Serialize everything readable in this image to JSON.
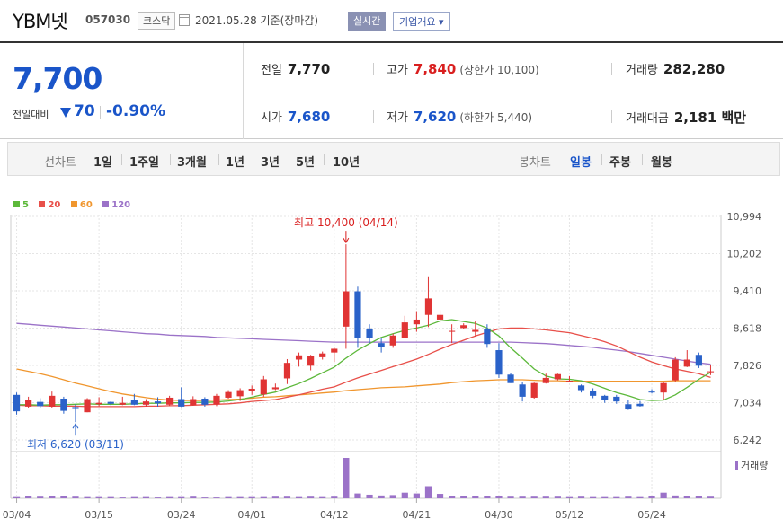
{
  "header": {
    "stock_name": "YBM넷",
    "stock_code": "057030",
    "market": "코스닥",
    "date_text": "2021.05.28 기준(장마감)",
    "realtime_button": "실시간",
    "company_button": "기업개요 ▾"
  },
  "summary": {
    "current_price": "7,700",
    "change_label": "전일대비",
    "change_value": "70",
    "change_rate": "-0.90%",
    "prev_close_label": "전일",
    "prev_close": "7,770",
    "high_label": "고가",
    "high": "7,840",
    "upper_limit": "(상한가 10,100)",
    "volume_label": "거래량",
    "volume": "282,280",
    "open_label": "시가",
    "open": "7,680",
    "low_label": "저가",
    "low": "7,620",
    "lower_limit": "(하한가 5,440)",
    "amount_label": "거래대금",
    "amount": "2,181 백만"
  },
  "periods": {
    "line_label": "선차트",
    "line_items": [
      "1일",
      "1주일",
      "3개월",
      "1년",
      "3년",
      "5년",
      "10년"
    ],
    "candle_label": "봉차트",
    "candle_items": [
      "일봉",
      "주봉",
      "월봉"
    ],
    "candle_selected": "일봉"
  },
  "colors": {
    "up": "#e03434",
    "down": "#2a62c9",
    "ma5": "#5cb83a",
    "ma20": "#e8504a",
    "ma60": "#f0962e",
    "ma120": "#9b72c8",
    "volume": "#9b72c8"
  },
  "legend": [
    "5",
    "20",
    "60",
    "120"
  ],
  "volume_label": "거래량",
  "chart_data": {
    "type": "candlestick",
    "y_ticks": [
      "10,994",
      "10,202",
      "9,410",
      "8,618",
      "7,826",
      "7,034",
      "6,242"
    ],
    "ylim": [
      6242,
      10994
    ],
    "x_ticks": [
      {
        "label": "03/04",
        "index": 0
      },
      {
        "label": "03/15",
        "index": 7
      },
      {
        "label": "03/24",
        "index": 14
      },
      {
        "label": "04/01",
        "index": 20
      },
      {
        "label": "04/12",
        "index": 27
      },
      {
        "label": "04/21",
        "index": 34
      },
      {
        "label": "04/30",
        "index": 41
      },
      {
        "label": "05/12",
        "index": 47
      },
      {
        "label": "05/24",
        "index": 54
      }
    ],
    "annotations": {
      "high": {
        "text": "최고 10,400 (04/14)",
        "index": 28,
        "value": 10400
      },
      "low": {
        "text": "최저 6,620 (03/11)",
        "index": 5,
        "value": 6620
      }
    },
    "candles": [
      [
        7200,
        7250,
        6780,
        6850
      ],
      [
        6950,
        7160,
        6920,
        7100
      ],
      [
        7050,
        7130,
        6920,
        6960
      ],
      [
        6950,
        7270,
        6930,
        7180
      ],
      [
        7120,
        7160,
        6800,
        6860
      ],
      [
        6940,
        7000,
        6620,
        6900
      ],
      [
        6830,
        7130,
        6830,
        7110
      ],
      [
        7000,
        7150,
        6960,
        7030
      ],
      [
        7050,
        7060,
        6980,
        7010
      ],
      [
        6990,
        7160,
        6980,
        7030
      ],
      [
        7100,
        7220,
        6980,
        6990
      ],
      [
        6990,
        7110,
        6950,
        7060
      ],
      [
        7060,
        7150,
        6950,
        7020
      ],
      [
        6990,
        7180,
        6960,
        7140
      ],
      [
        7110,
        7360,
        6940,
        6950
      ],
      [
        6980,
        7170,
        6970,
        7110
      ],
      [
        7120,
        7150,
        6950,
        6990
      ],
      [
        7000,
        7220,
        6960,
        7180
      ],
      [
        7140,
        7300,
        7120,
        7260
      ],
      [
        7170,
        7340,
        7070,
        7300
      ],
      [
        7280,
        7400,
        7200,
        7330
      ],
      [
        7210,
        7600,
        7160,
        7530
      ],
      [
        7320,
        7440,
        7300,
        7360
      ],
      [
        7550,
        7960,
        7430,
        7880
      ],
      [
        7950,
        8100,
        7800,
        8040
      ],
      [
        7820,
        8050,
        7720,
        8020
      ],
      [
        8000,
        8120,
        7950,
        8080
      ],
      [
        8100,
        8200,
        7900,
        8180
      ],
      [
        8650,
        10400,
        8180,
        9400
      ],
      [
        9400,
        9500,
        8200,
        8400
      ],
      [
        8610,
        8700,
        8300,
        8400
      ],
      [
        8300,
        8400,
        8100,
        8210
      ],
      [
        8250,
        8500,
        8200,
        8460
      ],
      [
        8400,
        8880,
        8400,
        8740
      ],
      [
        8700,
        8980,
        8540,
        8800
      ],
      [
        8900,
        9720,
        8640,
        9250
      ],
      [
        8800,
        9000,
        8730,
        8900
      ],
      [
        8540,
        8700,
        8300,
        8560
      ],
      [
        8620,
        8720,
        8600,
        8680
      ],
      [
        8540,
        8780,
        8440,
        8580
      ],
      [
        8600,
        8700,
        8200,
        8280
      ],
      [
        8150,
        8300,
        7560,
        7630
      ],
      [
        7630,
        7660,
        7450,
        7450
      ],
      [
        7420,
        7480,
        7060,
        7160
      ],
      [
        7140,
        7460,
        7120,
        7450
      ],
      [
        7450,
        7650,
        7440,
        7560
      ],
      [
        7530,
        7650,
        7510,
        7640
      ],
      [
        7500,
        7600,
        7470,
        7500
      ],
      [
        7400,
        7420,
        7250,
        7300
      ],
      [
        7290,
        7340,
        7130,
        7180
      ],
      [
        7180,
        7200,
        7030,
        7100
      ],
      [
        7160,
        7200,
        7010,
        7060
      ],
      [
        7000,
        7100,
        6880,
        6890
      ],
      [
        7010,
        7070,
        6950,
        6960
      ],
      [
        7270,
        7320,
        7230,
        7250
      ],
      [
        7250,
        7480,
        7100,
        7450
      ],
      [
        7510,
        8000,
        7480,
        7950
      ],
      [
        7800,
        8150,
        7790,
        7950
      ],
      [
        8050,
        8100,
        7770,
        7820
      ],
      [
        7680,
        7840,
        7620,
        7700
      ]
    ],
    "ma5": [
      6990,
      6990,
      6980,
      6990,
      6990,
      7000,
      7010,
      7000,
      7000,
      7000,
      7010,
      7020,
      7020,
      7030,
      7030,
      7040,
      7040,
      7050,
      7070,
      7100,
      7150,
      7210,
      7260,
      7350,
      7440,
      7550,
      7670,
      7790,
      7980,
      8150,
      8290,
      8420,
      8500,
      8570,
      8620,
      8680,
      8770,
      8800,
      8760,
      8720,
      8620,
      8450,
      8200,
      7980,
      7750,
      7600,
      7540,
      7530,
      7500,
      7430,
      7340,
      7250,
      7180,
      7100,
      7080,
      7090,
      7200,
      7360,
      7530,
      7680
    ],
    "ma20": [
      6980,
      6970,
      6970,
      6960,
      6960,
      6960,
      6950,
      6950,
      6950,
      6950,
      6950,
      6960,
      6960,
      6970,
      6970,
      6980,
      6990,
      7000,
      7010,
      7030,
      7060,
      7080,
      7100,
      7150,
      7200,
      7260,
      7320,
      7370,
      7470,
      7560,
      7640,
      7720,
      7800,
      7880,
      7960,
      8060,
      8170,
      8270,
      8360,
      8450,
      8530,
      8600,
      8620,
      8620,
      8600,
      8580,
      8550,
      8520,
      8460,
      8400,
      8330,
      8240,
      8120,
      8000,
      7900,
      7820,
      7750,
      7700,
      7650,
      7570
    ],
    "ma60": [
      7750,
      7700,
      7650,
      7590,
      7520,
      7450,
      7390,
      7330,
      7270,
      7220,
      7180,
      7140,
      7110,
      7090,
      7080,
      7080,
      7080,
      7090,
      7100,
      7110,
      7130,
      7150,
      7160,
      7180,
      7200,
      7220,
      7240,
      7260,
      7290,
      7310,
      7330,
      7350,
      7360,
      7370,
      7390,
      7410,
      7430,
      7460,
      7480,
      7500,
      7510,
      7520,
      7520,
      7520,
      7510,
      7500,
      7500,
      7490,
      7490,
      7490,
      7490,
      7490,
      7490,
      7490,
      7490,
      7490,
      7500,
      7500,
      7500,
      7500
    ],
    "ma120": [
      8720,
      8700,
      8680,
      8660,
      8640,
      8620,
      8600,
      8580,
      8560,
      8540,
      8520,
      8500,
      8490,
      8470,
      8460,
      8450,
      8440,
      8420,
      8410,
      8400,
      8390,
      8380,
      8370,
      8360,
      8350,
      8340,
      8330,
      8320,
      8320,
      8320,
      8320,
      8320,
      8320,
      8320,
      8320,
      8320,
      8320,
      8320,
      8320,
      8320,
      8320,
      8320,
      8320,
      8310,
      8300,
      8290,
      8270,
      8250,
      8230,
      8210,
      8180,
      8150,
      8120,
      8080,
      8040,
      8000,
      7960,
      7920,
      7880,
      7850
    ],
    "volume": [
      3,
      5,
      4,
      5,
      6,
      4,
      3,
      3,
      3,
      2,
      3,
      3,
      2,
      3,
      3,
      4,
      2,
      2,
      3,
      3,
      3,
      3,
      4,
      4,
      3,
      4,
      3,
      4,
      100,
      12,
      9,
      7,
      8,
      14,
      12,
      30,
      11,
      6,
      5,
      6,
      5,
      5,
      4,
      4,
      4,
      4,
      4,
      3,
      4,
      3,
      3,
      3,
      4,
      3,
      6,
      14,
      7,
      6,
      5,
      4
    ]
  }
}
